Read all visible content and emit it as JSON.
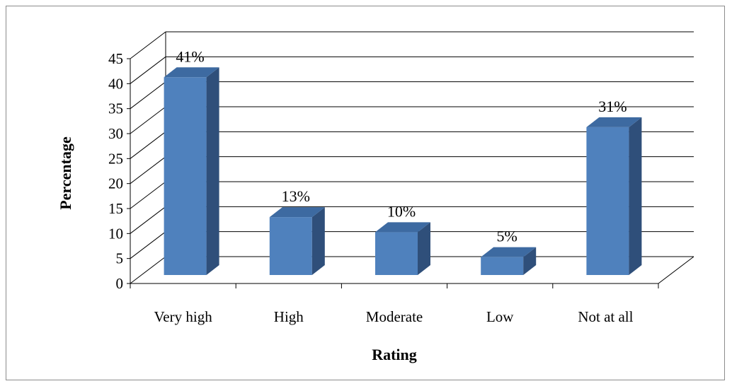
{
  "chart_data": {
    "type": "bar",
    "style": "3d-column",
    "categories": [
      "Very high",
      "High",
      "Moderate",
      "Low",
      "Not at all"
    ],
    "values": [
      41,
      13,
      10,
      5,
      31
    ],
    "data_labels": [
      "41%",
      "13%",
      "10%",
      "5%",
      "31%"
    ],
    "xlabel": "Rating",
    "ylabel": "Percentage",
    "ylim": [
      0,
      45
    ],
    "yticks": [
      "0",
      "5",
      "10",
      "15",
      "20",
      "25",
      "30",
      "35",
      "40",
      "45"
    ],
    "grid": true,
    "legend": "none",
    "colors": {
      "bar_front": "#4f81bd",
      "bar_side": "#2f4f7a",
      "bar_top": "#3d6aa1",
      "gridline": "#000000",
      "frame": "#8c8c8c"
    }
  }
}
